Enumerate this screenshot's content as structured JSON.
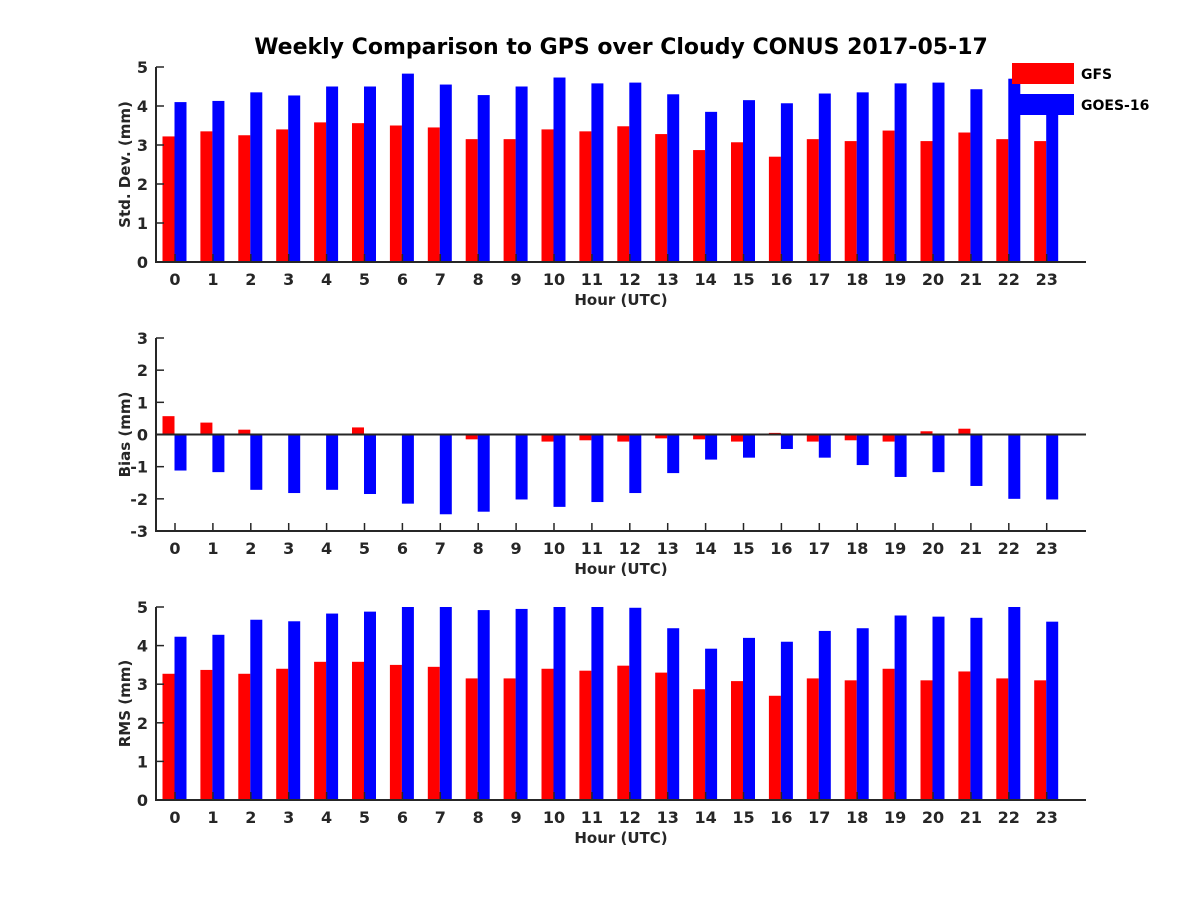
{
  "title": "Weekly Comparison to GPS over Cloudy CONUS 2017-05-17",
  "legend": {
    "placement": "top-right",
    "entries": [
      {
        "label": "GFS",
        "color": "#ff0000"
      },
      {
        "label": "GOES-16",
        "color": "#0000ff"
      }
    ]
  },
  "chart_data": [
    {
      "type": "bar",
      "xlabel": "Hour (UTC)",
      "ylabel": "Std. Dev. (mm)",
      "ylim": [
        0,
        5
      ],
      "yticks": [
        0,
        1,
        2,
        3,
        4,
        5
      ],
      "grid": false,
      "categories": [
        "0",
        "1",
        "2",
        "3",
        "4",
        "5",
        "6",
        "7",
        "8",
        "9",
        "10",
        "11",
        "12",
        "13",
        "14",
        "15",
        "16",
        "17",
        "18",
        "19",
        "20",
        "21",
        "22",
        "23"
      ],
      "series": [
        {
          "name": "GFS",
          "color": "#ff0000",
          "values": [
            3.22,
            3.35,
            3.25,
            3.4,
            3.58,
            3.56,
            3.5,
            3.45,
            3.15,
            3.15,
            3.4,
            3.35,
            3.48,
            3.28,
            2.87,
            3.07,
            2.7,
            3.15,
            3.1,
            3.37,
            3.1,
            3.32,
            3.15,
            3.1
          ]
        },
        {
          "name": "GOES-16",
          "color": "#0000ff",
          "values": [
            4.1,
            4.13,
            4.35,
            4.27,
            4.5,
            4.5,
            4.83,
            4.55,
            4.28,
            4.5,
            4.73,
            4.58,
            4.6,
            4.3,
            3.85,
            4.15,
            4.07,
            4.32,
            4.35,
            4.58,
            4.6,
            4.43,
            4.7,
            3.8
          ]
        }
      ]
    },
    {
      "type": "bar",
      "xlabel": "Hour (UTC)",
      "ylabel": "Bias (mm)",
      "ylim": [
        -3,
        3
      ],
      "yticks": [
        -3,
        -2,
        -1,
        0,
        1,
        2,
        3
      ],
      "grid": false,
      "categories": [
        "0",
        "1",
        "2",
        "3",
        "4",
        "5",
        "6",
        "7",
        "8",
        "9",
        "10",
        "11",
        "12",
        "13",
        "14",
        "15",
        "16",
        "17",
        "18",
        "19",
        "20",
        "21",
        "22",
        "23"
      ],
      "series": [
        {
          "name": "GFS",
          "color": "#ff0000",
          "values": [
            0.57,
            0.37,
            0.15,
            0.0,
            0.0,
            0.22,
            0.0,
            0.0,
            -0.15,
            0.0,
            -0.22,
            -0.18,
            -0.22,
            -0.12,
            -0.15,
            -0.22,
            0.05,
            -0.22,
            -0.18,
            -0.22,
            0.1,
            0.18,
            0.0,
            0.03
          ]
        },
        {
          "name": "GOES-16",
          "color": "#0000ff",
          "values": [
            -1.12,
            -1.17,
            -1.72,
            -1.82,
            -1.72,
            -1.85,
            -2.15,
            -2.48,
            -2.4,
            -2.02,
            -2.25,
            -2.1,
            -1.82,
            -1.2,
            -0.78,
            -0.72,
            -0.45,
            -0.72,
            -0.95,
            -1.32,
            -1.17,
            -1.6,
            -2.0,
            -2.02
          ]
        }
      ]
    },
    {
      "type": "bar",
      "xlabel": "Hour (UTC)",
      "ylabel": "RMS (mm)",
      "ylim": [
        0,
        5
      ],
      "yticks": [
        0,
        1,
        2,
        3,
        4,
        5
      ],
      "grid": false,
      "categories": [
        "0",
        "1",
        "2",
        "3",
        "4",
        "5",
        "6",
        "7",
        "8",
        "9",
        "10",
        "11",
        "12",
        "13",
        "14",
        "15",
        "16",
        "17",
        "18",
        "19",
        "20",
        "21",
        "22",
        "23"
      ],
      "series": [
        {
          "name": "GFS",
          "color": "#ff0000",
          "values": [
            3.27,
            3.37,
            3.27,
            3.4,
            3.58,
            3.58,
            3.5,
            3.45,
            3.15,
            3.15,
            3.4,
            3.35,
            3.48,
            3.3,
            2.87,
            3.08,
            2.7,
            3.15,
            3.1,
            3.4,
            3.1,
            3.33,
            3.15,
            3.1
          ]
        },
        {
          "name": "GOES-16",
          "color": "#0000ff",
          "values": [
            4.23,
            4.28,
            4.67,
            4.63,
            4.83,
            4.88,
            5.0,
            5.0,
            4.92,
            4.95,
            5.0,
            5.0,
            4.98,
            4.45,
            3.92,
            4.2,
            4.1,
            4.38,
            4.45,
            4.78,
            4.75,
            4.72,
            5.0,
            4.62
          ]
        }
      ]
    }
  ]
}
